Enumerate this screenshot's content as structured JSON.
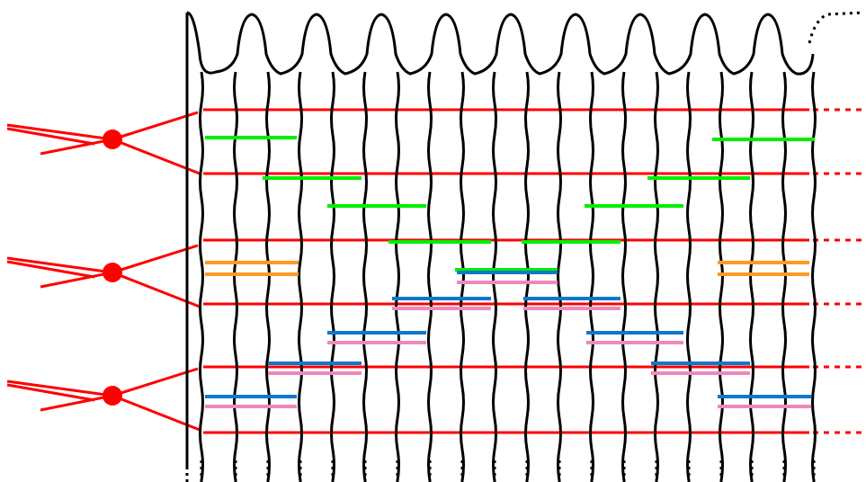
{
  "diagram": {
    "type": "stitch-lattice",
    "colors": {
      "background": "#ffffff",
      "outline": "#000000",
      "red": "#ff0000",
      "green": "#00ee00",
      "orange": "#ff9922",
      "blue": "#1177cc",
      "pink": "#ee88bb"
    },
    "column_count": 10,
    "red_row_count": 6,
    "knot_count": 3,
    "bar_groups": [
      "green",
      "orange",
      "blue-pink"
    ]
  }
}
